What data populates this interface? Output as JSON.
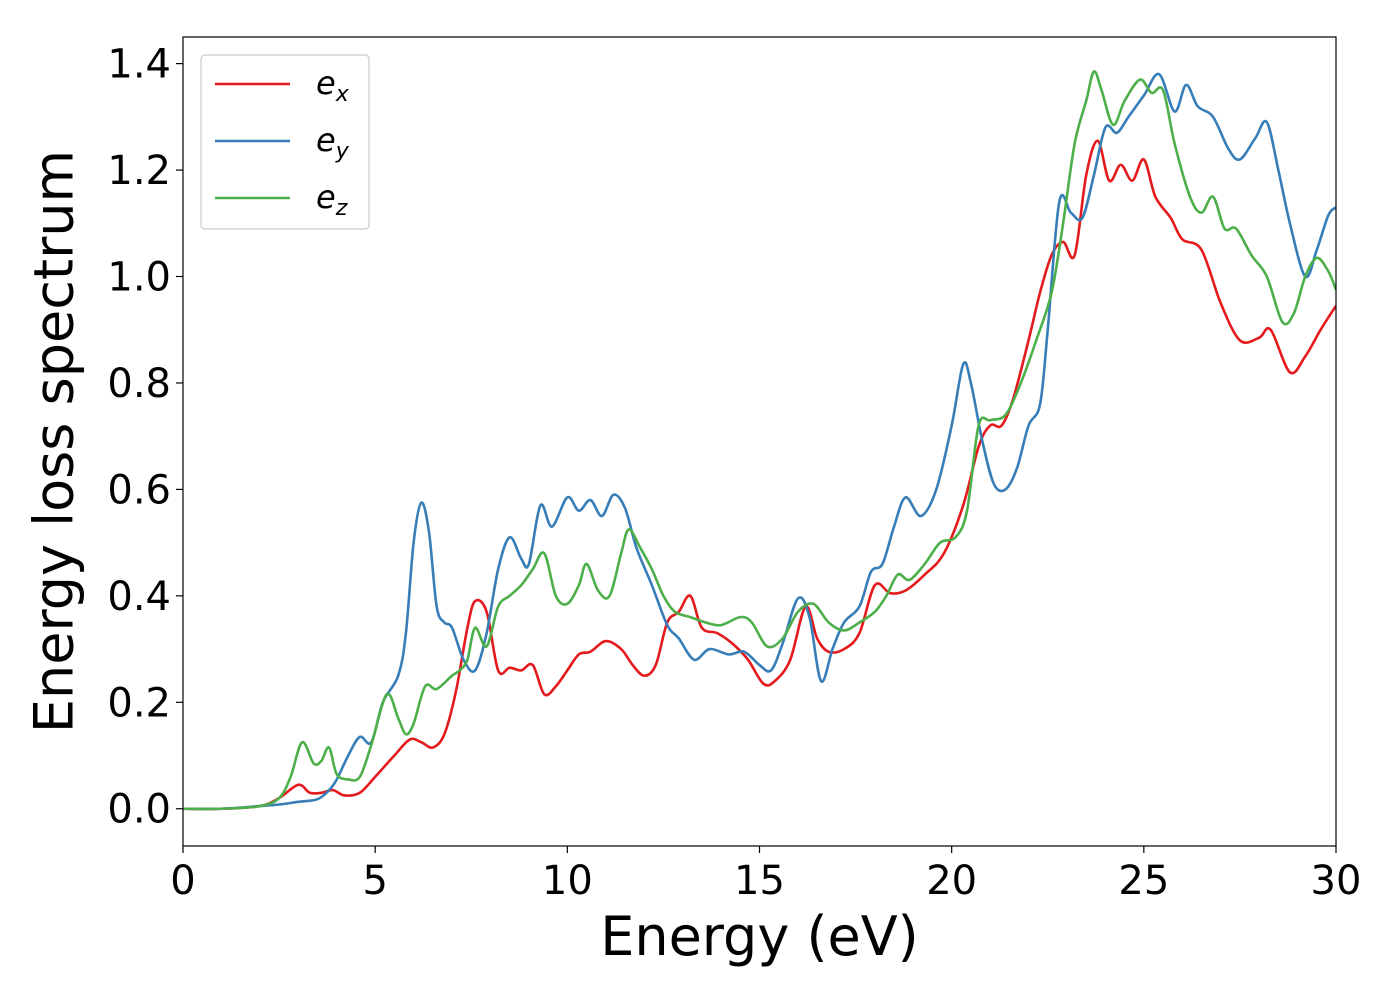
{
  "chart_data": {
    "type": "line",
    "title": "",
    "xlabel": "Energy (eV)",
    "ylabel": "Energy loss spectrum",
    "xlim": [
      0,
      30
    ],
    "ylim": [
      -0.07,
      1.45
    ],
    "xticks": [
      0,
      5,
      10,
      15,
      20,
      25,
      30
    ],
    "yticks": [
      0.0,
      0.2,
      0.4,
      0.6,
      0.8,
      1.0,
      1.2,
      1.4
    ],
    "xtick_labels": [
      "0",
      "5",
      "10",
      "15",
      "20",
      "25",
      "30"
    ],
    "ytick_labels": [
      "0.0",
      "0.2",
      "0.4",
      "0.6",
      "0.8",
      "1.0",
      "1.2",
      "1.4"
    ],
    "grid": false,
    "legend_position": "top-left",
    "series": [
      {
        "name": "e_x",
        "label_base": "e",
        "label_sub": "x",
        "color": "#e41a1c",
        "points": [
          [
            0,
            0.0
          ],
          [
            1,
            0.0
          ],
          [
            2,
            0.005
          ],
          [
            2.5,
            0.02
          ],
          [
            3.0,
            0.045
          ],
          [
            3.3,
            0.03
          ],
          [
            3.6,
            0.03
          ],
          [
            3.9,
            0.035
          ],
          [
            4.2,
            0.025
          ],
          [
            4.6,
            0.03
          ],
          [
            5.0,
            0.06
          ],
          [
            5.5,
            0.1
          ],
          [
            5.9,
            0.13
          ],
          [
            6.2,
            0.125
          ],
          [
            6.5,
            0.115
          ],
          [
            6.8,
            0.14
          ],
          [
            7.1,
            0.22
          ],
          [
            7.4,
            0.34
          ],
          [
            7.6,
            0.39
          ],
          [
            7.9,
            0.37
          ],
          [
            8.2,
            0.26
          ],
          [
            8.5,
            0.265
          ],
          [
            8.8,
            0.26
          ],
          [
            9.1,
            0.27
          ],
          [
            9.4,
            0.215
          ],
          [
            9.7,
            0.23
          ],
          [
            10.0,
            0.26
          ],
          [
            10.3,
            0.29
          ],
          [
            10.6,
            0.295
          ],
          [
            11.0,
            0.315
          ],
          [
            11.4,
            0.3
          ],
          [
            11.7,
            0.27
          ],
          [
            12.0,
            0.25
          ],
          [
            12.3,
            0.27
          ],
          [
            12.6,
            0.35
          ],
          [
            12.9,
            0.37
          ],
          [
            13.2,
            0.4
          ],
          [
            13.5,
            0.34
          ],
          [
            13.9,
            0.33
          ],
          [
            14.3,
            0.31
          ],
          [
            14.7,
            0.28
          ],
          [
            15.1,
            0.235
          ],
          [
            15.4,
            0.24
          ],
          [
            15.8,
            0.28
          ],
          [
            16.2,
            0.38
          ],
          [
            16.5,
            0.32
          ],
          [
            16.8,
            0.295
          ],
          [
            17.2,
            0.3
          ],
          [
            17.6,
            0.33
          ],
          [
            18.0,
            0.42
          ],
          [
            18.4,
            0.405
          ],
          [
            18.8,
            0.41
          ],
          [
            19.3,
            0.44
          ],
          [
            19.8,
            0.48
          ],
          [
            20.3,
            0.57
          ],
          [
            20.7,
            0.68
          ],
          [
            21.0,
            0.72
          ],
          [
            21.3,
            0.72
          ],
          [
            21.6,
            0.77
          ],
          [
            22.0,
            0.88
          ],
          [
            22.3,
            0.97
          ],
          [
            22.6,
            1.04
          ],
          [
            22.9,
            1.065
          ],
          [
            23.2,
            1.04
          ],
          [
            23.5,
            1.19
          ],
          [
            23.8,
            1.255
          ],
          [
            24.1,
            1.18
          ],
          [
            24.4,
            1.21
          ],
          [
            24.7,
            1.18
          ],
          [
            25.0,
            1.22
          ],
          [
            25.3,
            1.15
          ],
          [
            25.7,
            1.11
          ],
          [
            26.0,
            1.07
          ],
          [
            26.5,
            1.05
          ],
          [
            27.0,
            0.95
          ],
          [
            27.5,
            0.88
          ],
          [
            28.0,
            0.885
          ],
          [
            28.3,
            0.9
          ],
          [
            28.8,
            0.82
          ],
          [
            29.2,
            0.85
          ],
          [
            29.6,
            0.9
          ],
          [
            30.0,
            0.945
          ]
        ]
      },
      {
        "name": "e_y",
        "label_base": "e",
        "label_sub": "y",
        "color": "#377eb8",
        "points": [
          [
            0,
            0.0
          ],
          [
            1,
            0.0
          ],
          [
            2,
            0.005
          ],
          [
            2.5,
            0.008
          ],
          [
            3.0,
            0.013
          ],
          [
            3.5,
            0.018
          ],
          [
            3.8,
            0.035
          ],
          [
            4.0,
            0.055
          ],
          [
            4.3,
            0.1
          ],
          [
            4.6,
            0.135
          ],
          [
            4.9,
            0.125
          ],
          [
            5.2,
            0.2
          ],
          [
            5.6,
            0.25
          ],
          [
            5.8,
            0.33
          ],
          [
            6.0,
            0.5
          ],
          [
            6.2,
            0.575
          ],
          [
            6.4,
            0.52
          ],
          [
            6.6,
            0.38
          ],
          [
            6.8,
            0.35
          ],
          [
            7.0,
            0.34
          ],
          [
            7.3,
            0.28
          ],
          [
            7.6,
            0.26
          ],
          [
            7.9,
            0.33
          ],
          [
            8.2,
            0.45
          ],
          [
            8.5,
            0.51
          ],
          [
            8.8,
            0.47
          ],
          [
            9.0,
            0.46
          ],
          [
            9.3,
            0.57
          ],
          [
            9.6,
            0.53
          ],
          [
            10.0,
            0.585
          ],
          [
            10.3,
            0.56
          ],
          [
            10.6,
            0.58
          ],
          [
            10.9,
            0.55
          ],
          [
            11.2,
            0.59
          ],
          [
            11.5,
            0.565
          ],
          [
            11.8,
            0.49
          ],
          [
            12.2,
            0.42
          ],
          [
            12.6,
            0.345
          ],
          [
            12.9,
            0.32
          ],
          [
            13.3,
            0.28
          ],
          [
            13.7,
            0.3
          ],
          [
            14.2,
            0.29
          ],
          [
            14.6,
            0.295
          ],
          [
            15.0,
            0.27
          ],
          [
            15.3,
            0.26
          ],
          [
            15.6,
            0.31
          ],
          [
            16.0,
            0.395
          ],
          [
            16.3,
            0.36
          ],
          [
            16.6,
            0.24
          ],
          [
            16.9,
            0.3
          ],
          [
            17.2,
            0.35
          ],
          [
            17.6,
            0.38
          ],
          [
            17.9,
            0.445
          ],
          [
            18.2,
            0.46
          ],
          [
            18.5,
            0.53
          ],
          [
            18.8,
            0.585
          ],
          [
            19.2,
            0.55
          ],
          [
            19.6,
            0.6
          ],
          [
            20.0,
            0.72
          ],
          [
            20.3,
            0.835
          ],
          [
            20.5,
            0.8
          ],
          [
            20.8,
            0.69
          ],
          [
            21.1,
            0.61
          ],
          [
            21.4,
            0.6
          ],
          [
            21.7,
            0.64
          ],
          [
            22.0,
            0.72
          ],
          [
            22.3,
            0.76
          ],
          [
            22.5,
            0.9
          ],
          [
            22.8,
            1.14
          ],
          [
            23.1,
            1.12
          ],
          [
            23.4,
            1.11
          ],
          [
            23.7,
            1.19
          ],
          [
            24.0,
            1.28
          ],
          [
            24.3,
            1.27
          ],
          [
            24.6,
            1.3
          ],
          [
            25.0,
            1.34
          ],
          [
            25.4,
            1.38
          ],
          [
            25.8,
            1.31
          ],
          [
            26.1,
            1.36
          ],
          [
            26.4,
            1.32
          ],
          [
            26.8,
            1.3
          ],
          [
            27.2,
            1.24
          ],
          [
            27.5,
            1.22
          ],
          [
            27.9,
            1.26
          ],
          [
            28.2,
            1.29
          ],
          [
            28.5,
            1.2
          ],
          [
            28.8,
            1.1
          ],
          [
            29.2,
            1.0
          ],
          [
            29.5,
            1.05
          ],
          [
            29.8,
            1.115
          ],
          [
            30.0,
            1.13
          ]
        ]
      },
      {
        "name": "e_z",
        "label_base": "e",
        "label_sub": "z",
        "color": "#4daf4a",
        "points": [
          [
            0,
            0.0
          ],
          [
            1,
            0.0
          ],
          [
            2,
            0.005
          ],
          [
            2.5,
            0.02
          ],
          [
            2.8,
            0.06
          ],
          [
            3.1,
            0.125
          ],
          [
            3.4,
            0.085
          ],
          [
            3.6,
            0.09
          ],
          [
            3.8,
            0.115
          ],
          [
            4.0,
            0.065
          ],
          [
            4.3,
            0.055
          ],
          [
            4.6,
            0.06
          ],
          [
            4.9,
            0.12
          ],
          [
            5.3,
            0.215
          ],
          [
            5.6,
            0.17
          ],
          [
            5.8,
            0.14
          ],
          [
            6.0,
            0.16
          ],
          [
            6.3,
            0.23
          ],
          [
            6.6,
            0.225
          ],
          [
            7.0,
            0.25
          ],
          [
            7.2,
            0.26
          ],
          [
            7.4,
            0.28
          ],
          [
            7.6,
            0.34
          ],
          [
            7.9,
            0.305
          ],
          [
            8.2,
            0.38
          ],
          [
            8.5,
            0.4
          ],
          [
            8.8,
            0.42
          ],
          [
            9.1,
            0.45
          ],
          [
            9.4,
            0.48
          ],
          [
            9.7,
            0.4
          ],
          [
            10.0,
            0.385
          ],
          [
            10.3,
            0.42
          ],
          [
            10.5,
            0.46
          ],
          [
            10.8,
            0.41
          ],
          [
            11.1,
            0.4
          ],
          [
            11.4,
            0.48
          ],
          [
            11.6,
            0.525
          ],
          [
            11.9,
            0.49
          ],
          [
            12.2,
            0.45
          ],
          [
            12.5,
            0.4
          ],
          [
            12.8,
            0.37
          ],
          [
            13.2,
            0.36
          ],
          [
            13.6,
            0.35
          ],
          [
            14.0,
            0.345
          ],
          [
            14.5,
            0.36
          ],
          [
            14.8,
            0.35
          ],
          [
            15.2,
            0.305
          ],
          [
            15.6,
            0.32
          ],
          [
            16.0,
            0.37
          ],
          [
            16.4,
            0.385
          ],
          [
            16.8,
            0.35
          ],
          [
            17.2,
            0.335
          ],
          [
            17.6,
            0.35
          ],
          [
            18.0,
            0.37
          ],
          [
            18.3,
            0.4
          ],
          [
            18.6,
            0.44
          ],
          [
            18.9,
            0.43
          ],
          [
            19.3,
            0.46
          ],
          [
            19.7,
            0.5
          ],
          [
            20.1,
            0.51
          ],
          [
            20.4,
            0.56
          ],
          [
            20.7,
            0.72
          ],
          [
            21.0,
            0.73
          ],
          [
            21.4,
            0.74
          ],
          [
            21.8,
            0.8
          ],
          [
            22.2,
            0.88
          ],
          [
            22.6,
            0.97
          ],
          [
            22.9,
            1.1
          ],
          [
            23.2,
            1.25
          ],
          [
            23.5,
            1.33
          ],
          [
            23.7,
            1.385
          ],
          [
            23.9,
            1.35
          ],
          [
            24.2,
            1.285
          ],
          [
            24.5,
            1.33
          ],
          [
            24.9,
            1.37
          ],
          [
            25.2,
            1.345
          ],
          [
            25.5,
            1.35
          ],
          [
            25.8,
            1.25
          ],
          [
            26.2,
            1.15
          ],
          [
            26.5,
            1.12
          ],
          [
            26.8,
            1.15
          ],
          [
            27.1,
            1.09
          ],
          [
            27.4,
            1.09
          ],
          [
            27.8,
            1.04
          ],
          [
            28.2,
            1.0
          ],
          [
            28.6,
            0.915
          ],
          [
            28.9,
            0.93
          ],
          [
            29.2,
            1.0
          ],
          [
            29.5,
            1.035
          ],
          [
            29.8,
            1.01
          ],
          [
            30.0,
            0.975
          ]
        ]
      }
    ]
  }
}
